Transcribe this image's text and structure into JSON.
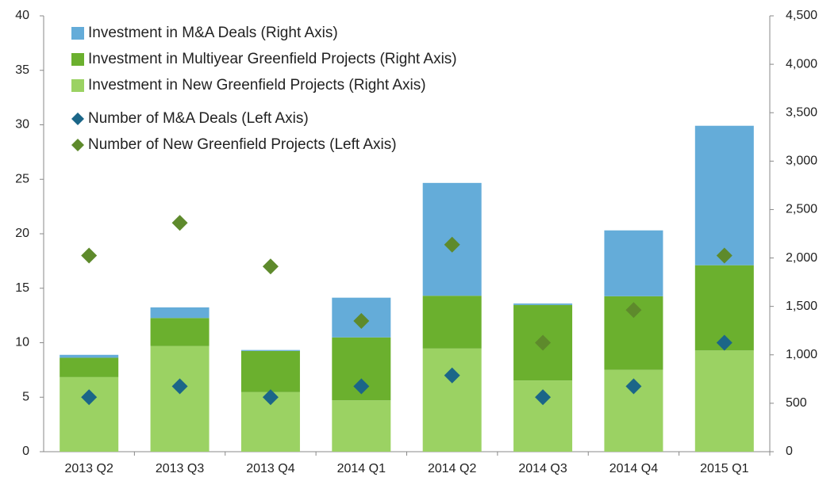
{
  "chart_data": {
    "type": "bar",
    "stacked": true,
    "categories": [
      "2013 Q2",
      "2013 Q3",
      "2013 Q4",
      "2014 Q1",
      "2014 Q2",
      "2014 Q3",
      "2014 Q4",
      "2015 Q1"
    ],
    "series": [
      {
        "name": "Investment in New Greenfield Projects (Right Axis)",
        "color": "#9bd263",
        "kind": "bar",
        "axis": "y2",
        "values": [
          770,
          1090,
          615,
          530,
          1065,
          735,
          845,
          1045
        ]
      },
      {
        "name": "Investment in Multiyear Greenfield Projects (Right Axis)",
        "color": "#6bb02e",
        "kind": "bar",
        "axis": "y2",
        "values": [
          200,
          290,
          425,
          650,
          545,
          780,
          760,
          880
        ]
      },
      {
        "name": "Investment in M&A Deals (Right Axis)",
        "color": "#64acd9",
        "kind": "bar",
        "axis": "y2",
        "values": [
          30,
          110,
          10,
          410,
          1165,
          15,
          680,
          1440
        ]
      },
      {
        "name": "Number of M&A Deals (Left Axis)",
        "color": "#1b6688",
        "kind": "diamond",
        "axis": "y",
        "values": [
          5,
          6,
          5,
          6,
          7,
          5,
          6,
          10
        ]
      },
      {
        "name": "Number of New Greenfield Projects (Left Axis)",
        "color": "#5e8a2c",
        "kind": "diamond",
        "axis": "y",
        "values": [
          18,
          21,
          17,
          12,
          19,
          10,
          13,
          18
        ]
      }
    ],
    "legend_order": [
      2,
      1,
      0,
      3,
      4
    ],
    "ylim": [
      0,
      40
    ],
    "yticks": [
      0,
      5,
      10,
      15,
      20,
      25,
      30,
      35,
      40
    ],
    "y2lim": [
      0,
      4500
    ],
    "y2ticks": [
      0,
      500,
      {
        "value": 1000,
        "label": "1,000"
      },
      {
        "value": 1500,
        "label": "1,500"
      },
      {
        "value": 2000,
        "label": "2,000"
      },
      {
        "value": 2500,
        "label": "2,500"
      },
      {
        "value": 3000,
        "label": "3,000"
      },
      {
        "value": 3500,
        "label": "3,500"
      },
      {
        "value": 4000,
        "label": "4,000"
      },
      {
        "value": 4500,
        "label": "4,500"
      }
    ],
    "grid": false
  }
}
